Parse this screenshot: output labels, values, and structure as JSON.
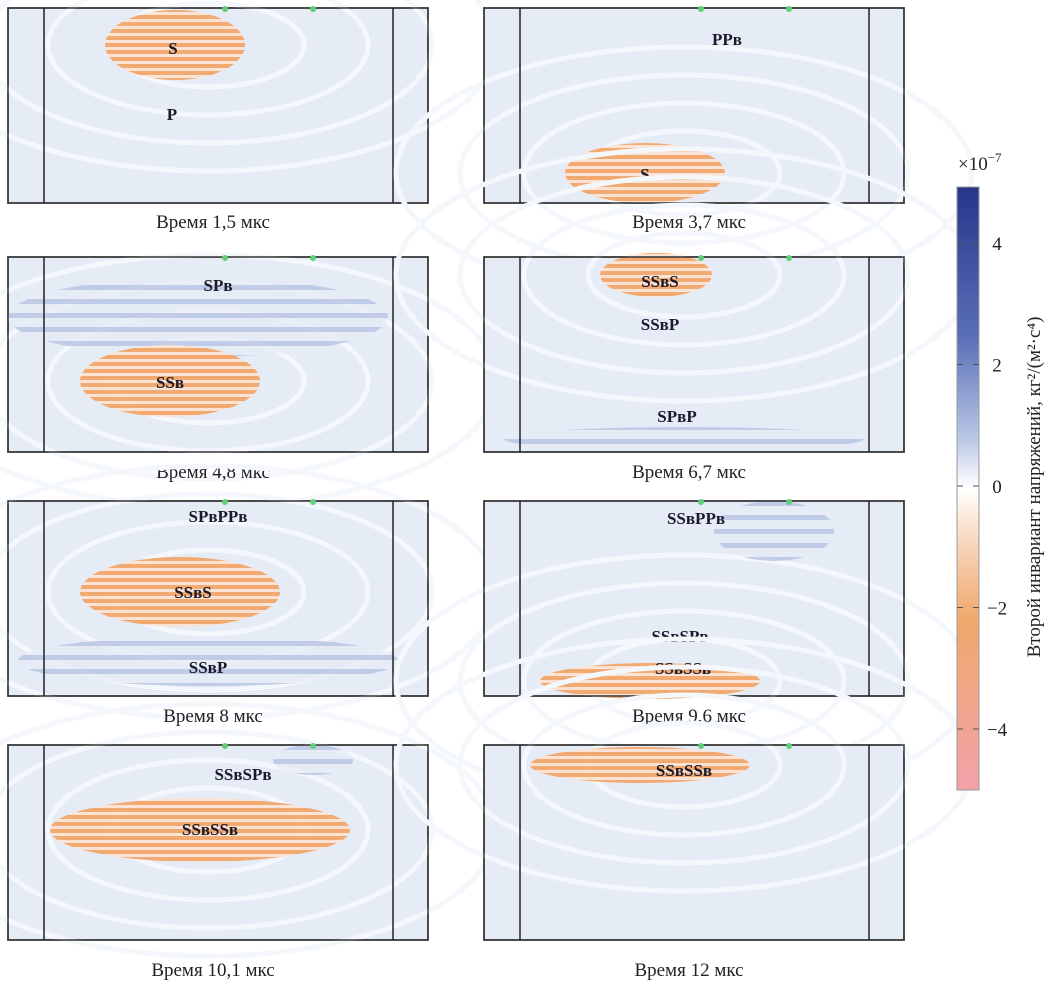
{
  "panels": [
    {
      "caption": "Время 1,5 мкс",
      "labels": [
        "S",
        "P"
      ]
    },
    {
      "caption": "Время 3,7 мкс",
      "labels": [
        "PPʙ",
        "S"
      ]
    },
    {
      "caption": "Время 4,8 мкс",
      "labels": [
        "SPʙ",
        "SSʙ"
      ]
    },
    {
      "caption": "Время 6,7 мкс",
      "labels": [
        "SSʙS",
        "SSʙP",
        "SPʙP"
      ]
    },
    {
      "caption": "Время 8 мкс",
      "labels": [
        "SPʙPPʙ",
        "SSʙS",
        "SSʙP"
      ]
    },
    {
      "caption": "Время 9,6 мкс",
      "labels": [
        "SSʙPPʙ",
        "SSʙSPʙ",
        "SSʙSSʙ"
      ]
    },
    {
      "caption": "Время 10,1 мкс",
      "labels": [
        "SSʙSPʙ",
        "SSʙSSʙ"
      ]
    },
    {
      "caption": "Время 12 мкс",
      "labels": [
        "SSʙSSʙ"
      ]
    }
  ],
  "colorbar": {
    "multiplier": "×10",
    "exponent": "−7",
    "ticks": [
      "4",
      "2",
      "0",
      "−2",
      "−4"
    ],
    "label": "Второй инвариант напряжений, кг²/(м²·с⁴)"
  }
}
